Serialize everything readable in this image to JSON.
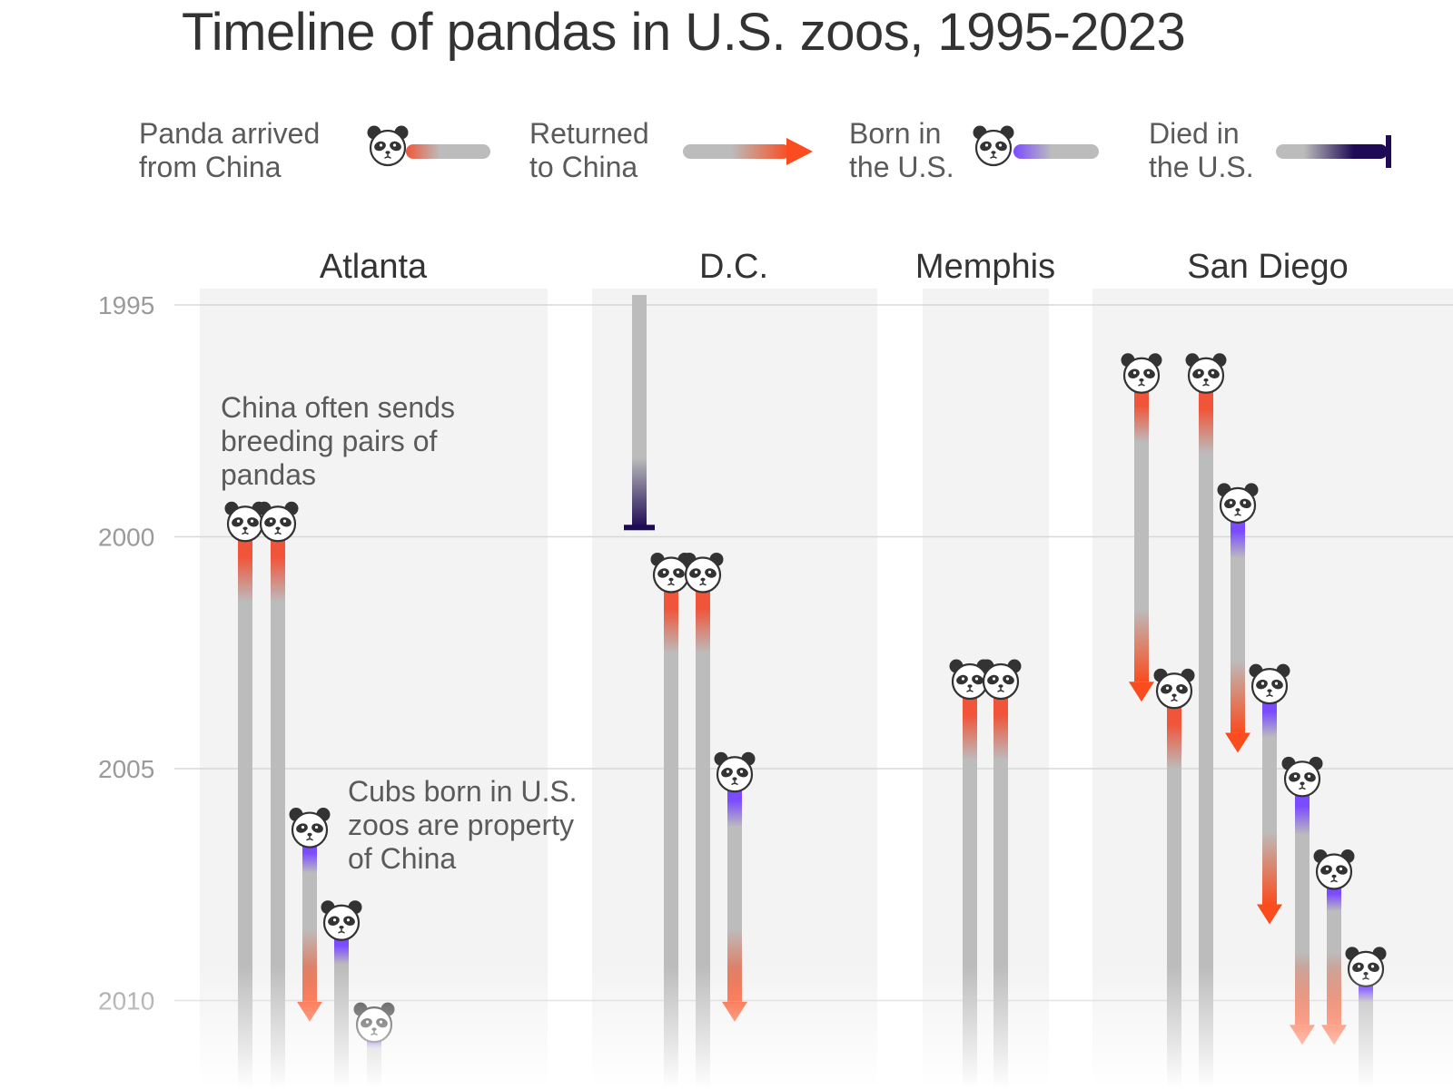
{
  "chart_data": {
    "type": "timeline",
    "title": "Timeline of pandas in U.S. zoos, 1995-2023",
    "y_ticks": [
      1995,
      2000,
      2005,
      2010
    ],
    "y_range": [
      1995,
      2010.8
    ],
    "legend": [
      {
        "key": "arrived",
        "label": "Panda arrived\nfrom China",
        "color": "#f0553a"
      },
      {
        "key": "returned",
        "label": "Returned\nto China",
        "color": "#fa4c1e"
      },
      {
        "key": "born",
        "label": "Born in\nthe U.S.",
        "color": "#7b4bff"
      },
      {
        "key": "died",
        "label": "Died in\nthe U.S.",
        "color": "#1e0a55"
      }
    ],
    "zoos": [
      {
        "name": "Atlanta",
        "pandas": [
          {
            "start": 1999.8,
            "start_type": "arrived",
            "end": null,
            "end_type": "ongoing"
          },
          {
            "start": 1999.8,
            "start_type": "arrived",
            "end": null,
            "end_type": "ongoing"
          },
          {
            "start": 2006.4,
            "start_type": "born",
            "end": 2010.3,
            "end_type": "returned"
          },
          {
            "start": 2008.4,
            "start_type": "born",
            "end": null,
            "end_type": "ongoing"
          },
          {
            "start": 2010.6,
            "start_type": "born",
            "end": null,
            "end_type": "ongoing"
          }
        ]
      },
      {
        "name": "D.C.",
        "pandas": [
          {
            "start": null,
            "start_type": "before-1995",
            "end": 1999.8,
            "end_type": "died"
          },
          {
            "start": 2000.9,
            "start_type": "arrived",
            "end": null,
            "end_type": "ongoing"
          },
          {
            "start": 2000.9,
            "start_type": "arrived",
            "end": null,
            "end_type": "ongoing"
          },
          {
            "start": 2005.2,
            "start_type": "born",
            "end": 2010.3,
            "end_type": "returned"
          }
        ]
      },
      {
        "name": "Memphis",
        "pandas": [
          {
            "start": 2003.2,
            "start_type": "arrived",
            "end": null,
            "end_type": "ongoing"
          },
          {
            "start": 2003.2,
            "start_type": "arrived",
            "end": null,
            "end_type": "ongoing"
          }
        ]
      },
      {
        "name": "San Diego",
        "pandas": [
          {
            "start": 1996.6,
            "start_type": "arrived",
            "end": 2003.4,
            "end_type": "returned"
          },
          {
            "start": 1996.6,
            "start_type": "arrived",
            "end": null,
            "end_type": "ongoing"
          },
          {
            "start": 1999.4,
            "start_type": "born",
            "end": 2004.5,
            "end_type": "returned"
          },
          {
            "start": 2003.4,
            "start_type": "arrived",
            "end": null,
            "end_type": "ongoing"
          },
          {
            "start": 2003.3,
            "start_type": "born",
            "end": 2008.2,
            "end_type": "returned"
          },
          {
            "start": 2005.3,
            "start_type": "born",
            "end": 2010.8,
            "end_type": "returned"
          },
          {
            "start": 2007.3,
            "start_type": "born",
            "end": 2010.8,
            "end_type": "returned"
          },
          {
            "start": 2009.4,
            "start_type": "born",
            "end": null,
            "end_type": "ongoing"
          }
        ]
      }
    ],
    "annotations": [
      "China often sends\nbreeding pairs of\npandas",
      "Cubs born in U.S.\nzoos are property\nof China"
    ]
  },
  "colors": {
    "panel": "#f3f3f3",
    "bar": "#bcbcbc",
    "grid": "#d8d8d8",
    "arrived": "#f0553a",
    "returned": "#fa4c1e",
    "born": "#7b4bff",
    "died": "#1e0a55"
  },
  "icons": {
    "panda": "panda-face-icon"
  }
}
